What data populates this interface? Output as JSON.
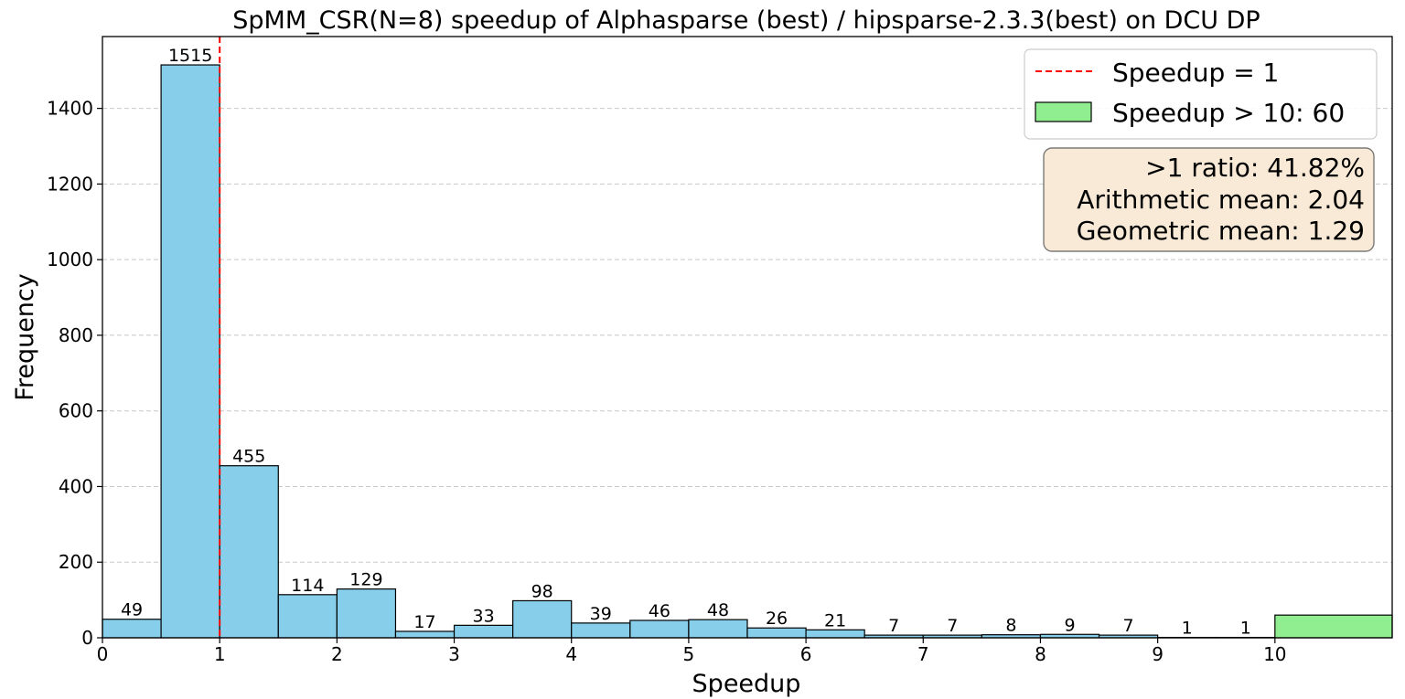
{
  "chart_data": {
    "type": "bar",
    "title": "SpMM_CSR(N=8) speedup of Alphasparse (best) / hipsparse-2.3.3(best) on DCU DP",
    "xlabel": "Speedup",
    "ylabel": "Frequency",
    "xlim": [
      0,
      11
    ],
    "ylim": [
      0,
      1590
    ],
    "x_ticks": [
      "0",
      "1",
      "2",
      "3",
      "4",
      "5",
      "6",
      "7",
      "8",
      "9",
      "10"
    ],
    "y_ticks": [
      "0",
      "200",
      "400",
      "600",
      "800",
      "1000",
      "1200",
      "1400"
    ],
    "grid": "y-dashed",
    "bins": [
      {
        "start": 0.0,
        "end": 0.5,
        "count": 49,
        "label": "49"
      },
      {
        "start": 0.5,
        "end": 1.0,
        "count": 1515,
        "label": "1515"
      },
      {
        "start": 1.0,
        "end": 1.5,
        "count": 455,
        "label": "455"
      },
      {
        "start": 1.5,
        "end": 2.0,
        "count": 114,
        "label": "114"
      },
      {
        "start": 2.0,
        "end": 2.5,
        "count": 129,
        "label": "129"
      },
      {
        "start": 2.5,
        "end": 3.0,
        "count": 17,
        "label": "17"
      },
      {
        "start": 3.0,
        "end": 3.5,
        "count": 33,
        "label": "33"
      },
      {
        "start": 3.5,
        "end": 4.0,
        "count": 98,
        "label": "98"
      },
      {
        "start": 4.0,
        "end": 4.5,
        "count": 39,
        "label": "39"
      },
      {
        "start": 4.5,
        "end": 5.0,
        "count": 46,
        "label": "46"
      },
      {
        "start": 5.0,
        "end": 5.5,
        "count": 48,
        "label": "48"
      },
      {
        "start": 5.5,
        "end": 6.0,
        "count": 26,
        "label": "26"
      },
      {
        "start": 6.0,
        "end": 6.5,
        "count": 21,
        "label": "21"
      },
      {
        "start": 6.5,
        "end": 7.0,
        "count": 7,
        "label": "7"
      },
      {
        "start": 7.0,
        "end": 7.5,
        "count": 7,
        "label": "7"
      },
      {
        "start": 7.5,
        "end": 8.0,
        "count": 8,
        "label": "8"
      },
      {
        "start": 8.0,
        "end": 8.5,
        "count": 9,
        "label": "9"
      },
      {
        "start": 8.5,
        "end": 9.0,
        "count": 7,
        "label": "7"
      },
      {
        "start": 9.0,
        "end": 9.5,
        "count": 1,
        "label": "1"
      },
      {
        "start": 9.5,
        "end": 10.0,
        "count": 1,
        "label": "1"
      }
    ],
    "overflow_bin": {
      "start": 10.0,
      "end": 11.0,
      "count": 60,
      "color": "#90ee90"
    },
    "bar_color": "#87ceeb",
    "reference_line": {
      "x": 1,
      "color": "#ff0000",
      "style": "dashed"
    },
    "legend": {
      "placement": "top-right",
      "entries": [
        {
          "label": "Speedup = 1",
          "kind": "dashed-line",
          "color": "#ff0000"
        },
        {
          "label": "Speedup > 10: 60",
          "kind": "patch",
          "color": "#90ee90"
        }
      ]
    },
    "stats_box": {
      "placement": "upper-right",
      "lines": [
        ">1 ratio: 41.82%",
        "Arithmetic mean: 2.04",
        "Geometric mean: 1.29"
      ],
      "background": "#f8ead6"
    }
  }
}
